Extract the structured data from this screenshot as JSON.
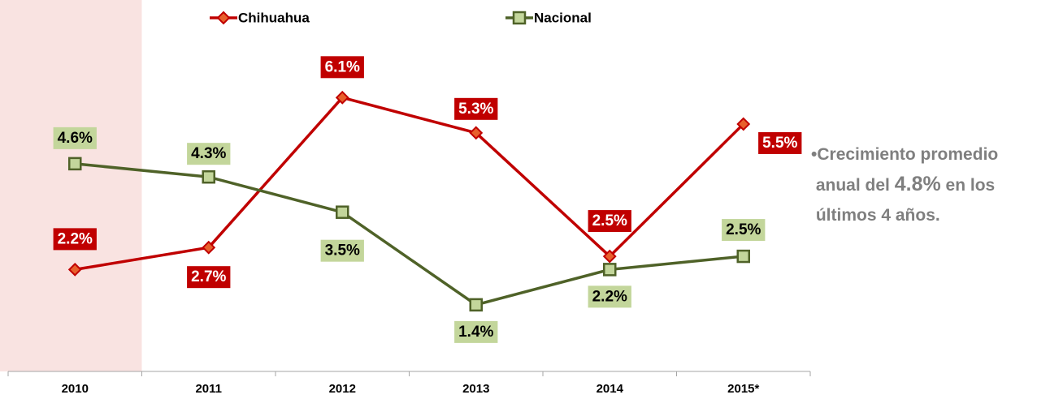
{
  "chart_data": {
    "type": "line",
    "categories": [
      "2010",
      "2011",
      "2012",
      "2013",
      "2014",
      "2015*"
    ],
    "series": [
      {
        "name": "Chihuahua",
        "color": "#c00000",
        "marker": "diamond",
        "marker_fill": "#e8602c",
        "values": [
          2.2,
          2.7,
          6.1,
          5.3,
          2.5,
          5.5
        ],
        "value_labels": [
          "2.2%",
          "2.7%",
          "6.1%",
          "5.3%",
          "2.5%",
          "5.5%"
        ]
      },
      {
        "name": "Nacional",
        "color": "#4f6228",
        "marker": "square",
        "marker_fill": "#c3d69b",
        "values": [
          4.6,
          4.3,
          3.5,
          1.4,
          2.2,
          2.5
        ],
        "value_labels": [
          "4.6%",
          "4.3%",
          "3.5%",
          "1.4%",
          "2.2%",
          "2.5%"
        ]
      }
    ],
    "ylim": [
      0,
      8
    ],
    "highlight_index": 0,
    "highlight_color": "#f9e3e1",
    "annotation": [
      "Crecimiento promedio",
      "anual del",
      "4.8%",
      "en los",
      "últimos 4 años."
    ]
  }
}
